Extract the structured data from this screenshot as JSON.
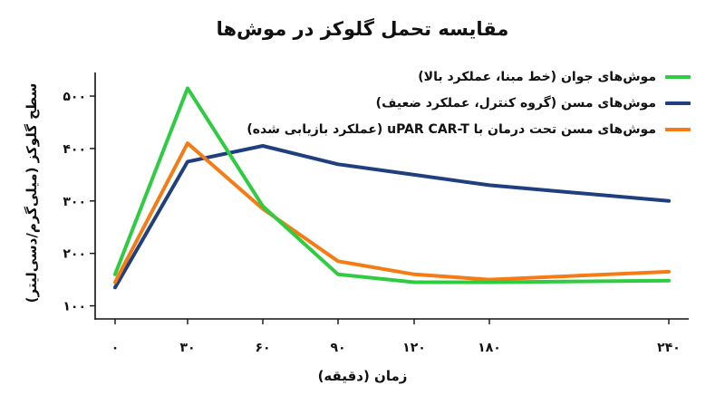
{
  "chart_data": {
    "type": "line",
    "title": "مقایسه تحمل گلوکز در موش‌ها",
    "xlabel": "زمان (دقیقه)",
    "ylabel": "سطح گلوکز (میلی‌گرم/دسی‌لیتر)",
    "x": [
      0,
      30,
      60,
      90,
      120,
      180,
      240
    ],
    "x_tick_labels": [
      "۰",
      "۳۰",
      "۶۰",
      "۹۰",
      "۱۲۰",
      "۱۸۰",
      "۲۴۰"
    ],
    "y_ticks": [
      100,
      200,
      300,
      400,
      500
    ],
    "y_tick_labels": [
      "۱۰۰",
      "۲۰۰",
      "۳۰۰",
      "۴۰۰",
      "۵۰۰"
    ],
    "ylim": [
      75,
      545
    ],
    "legend_position": "top-right",
    "grid": false,
    "series": [
      {
        "name": "موش‌های جوان (خط مبنا، عملکرد بالا)",
        "color": "#2ecc40",
        "values": [
          160,
          515,
          290,
          160,
          145,
          145,
          148
        ]
      },
      {
        "name": "موش‌های مسن (گروه کنترل، عملکرد ضعیف)",
        "color": "#1f3f7f",
        "values": [
          135,
          375,
          405,
          370,
          350,
          330,
          300
        ]
      },
      {
        "name": "موش‌های مسن تحت درمان با uPAR CAR-T (عملکرد بازیابی شده)",
        "color": "#f57c14",
        "values": [
          145,
          410,
          285,
          185,
          160,
          150,
          165
        ]
      }
    ]
  }
}
